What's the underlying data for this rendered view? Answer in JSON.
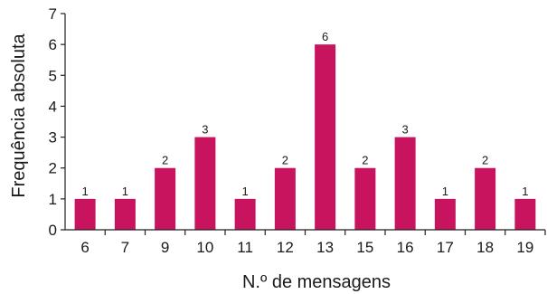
{
  "chart_data": {
    "type": "bar",
    "categories": [
      "6",
      "7",
      "9",
      "10",
      "11",
      "12",
      "13",
      "15",
      "16",
      "17",
      "18",
      "19"
    ],
    "values": [
      1,
      1,
      2,
      3,
      1,
      2,
      6,
      2,
      3,
      1,
      2,
      1
    ],
    "xlabel": "N.º de mensagens",
    "ylabel": "Frequência absoluta",
    "ylim": [
      0,
      7
    ],
    "yticks": [
      0,
      1,
      2,
      3,
      4,
      5,
      6,
      7
    ],
    "data_labels": [
      "1",
      "1",
      "2",
      "3",
      "1",
      "2",
      "6",
      "2",
      "3",
      "1",
      "2",
      "1"
    ],
    "grid": false,
    "colors": {
      "bar": "#c8145e",
      "axis": "#222222",
      "text": "#1a1a1a"
    }
  }
}
